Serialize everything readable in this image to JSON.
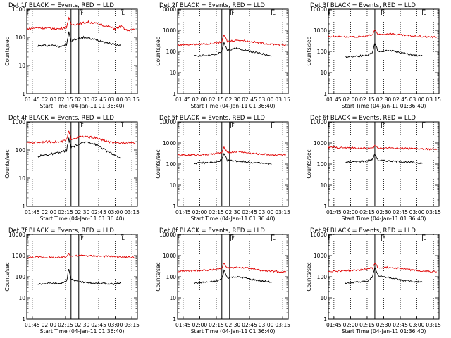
{
  "chart_data": {
    "type": "line",
    "xlabel": "Start Time (04-Jan-11 01:36:40)",
    "ylabel": "Counts/sec",
    "x_tick_labels": [
      "01:45",
      "02:00",
      "02:15",
      "02:30",
      "02:45",
      "03:00",
      "03:15"
    ],
    "xlim": [
      "01:40",
      "03:20"
    ],
    "y_scale": "log",
    "markers": {
      "F_label": "F",
      "L_label": "L",
      "F_time": "02:28",
      "L_time": "03:05"
    },
    "colors": {
      "events": "#000000",
      "lld": "#e00000"
    },
    "panels": [
      {
        "title": "Det 1f BLACK = Events, RED = LLD",
        "ylim": [
          1,
          1000
        ],
        "y_tick_labels": [
          "1",
          "10",
          "100",
          "1000"
        ],
        "solid_lines": [
          "02:20",
          "02:27"
        ],
        "series": [
          {
            "name": "BLACK = Events",
            "x": [
              "01:50",
              "02:00",
              "02:10",
              "02:16",
              "02:18",
              "02:20",
              "02:22",
              "02:26",
              "02:32",
              "02:40",
              "02:50",
              "03:00",
              "03:05"
            ],
            "values": [
              50,
              52,
              48,
              55,
              150,
              70,
              80,
              90,
              100,
              85,
              70,
              55,
              50
            ]
          },
          {
            "name": "RED = LLD",
            "x": [
              "01:40",
              "01:50",
              "02:00",
              "02:10",
              "02:16",
              "02:18",
              "02:20",
              "02:26",
              "02:35",
              "02:45",
              "02:55",
              "03:00",
              "03:05",
              "03:10",
              "03:18"
            ],
            "values": [
              200,
              220,
              210,
              200,
              240,
              500,
              280,
              300,
              350,
              300,
              230,
              200,
              250,
              180,
              190
            ]
          }
        ]
      },
      {
        "title": "Det 2f BLACK = Events, RED = LLD",
        "ylim": [
          1,
          10000
        ],
        "y_tick_labels": [
          "1",
          "10",
          "100",
          "1000",
          "10000"
        ],
        "solid_lines": [
          "02:20",
          "02:27"
        ],
        "series": [
          {
            "name": "BLACK = Events",
            "x": [
              "01:55",
              "02:05",
              "02:15",
              "02:20",
              "02:22",
              "02:25",
              "02:32",
              "02:40",
              "02:50",
              "03:00",
              "03:05"
            ],
            "values": [
              60,
              65,
              70,
              100,
              250,
              110,
              140,
              120,
              90,
              70,
              60
            ]
          },
          {
            "name": "RED = LLD",
            "x": [
              "01:40",
              "01:50",
              "02:00",
              "02:10",
              "02:20",
              "02:22",
              "02:25",
              "02:35",
              "02:45",
              "02:55",
              "03:05",
              "03:18"
            ],
            "values": [
              200,
              210,
              220,
              230,
              280,
              600,
              300,
              350,
              300,
              250,
              220,
              200
            ]
          }
        ]
      },
      {
        "title": "Det 3f BLACK = Events, RED = LLD",
        "ylim": [
          1,
          10000
        ],
        "y_tick_labels": [
          "1",
          "10",
          "100",
          "1000",
          "10000"
        ],
        "solid_lines": [
          "02:22"
        ],
        "series": [
          {
            "name": "BLACK = Events",
            "x": [
              "01:55",
              "02:05",
              "02:15",
              "02:20",
              "02:22",
              "02:25",
              "02:35",
              "02:45",
              "02:55",
              "03:05"
            ],
            "values": [
              55,
              60,
              65,
              90,
              250,
              100,
              110,
              90,
              70,
              60
            ]
          },
          {
            "name": "RED = LLD",
            "x": [
              "01:40",
              "01:50",
              "02:00",
              "02:10",
              "02:20",
              "02:22",
              "02:25",
              "02:35",
              "02:45",
              "02:55",
              "03:05",
              "03:18"
            ],
            "values": [
              500,
              520,
              480,
              500,
              600,
              1100,
              600,
              700,
              600,
              550,
              500,
              480
            ]
          }
        ]
      },
      {
        "title": "Det 4f BLACK = Events, RED = LLD",
        "ylim": [
          1,
          1000
        ],
        "y_tick_labels": [
          "1",
          "10",
          "100",
          "1000"
        ],
        "solid_lines": [
          "02:20",
          "02:27"
        ],
        "series": [
          {
            "name": "BLACK = Events",
            "x": [
              "01:50",
              "02:00",
              "02:10",
              "02:16",
              "02:18",
              "02:20",
              "02:25",
              "02:35",
              "02:45",
              "02:55",
              "03:05"
            ],
            "values": [
              60,
              70,
              80,
              100,
              250,
              120,
              150,
              200,
              140,
              80,
              50
            ]
          },
          {
            "name": "RED = LLD",
            "x": [
              "01:40",
              "01:50",
              "02:00",
              "02:10",
              "02:16",
              "02:18",
              "02:20",
              "02:30",
              "02:40",
              "02:50",
              "03:00",
              "03:10",
              "03:18"
            ],
            "values": [
              180,
              190,
              200,
              190,
              230,
              450,
              250,
              300,
              280,
              220,
              170,
              190,
              180
            ]
          }
        ]
      },
      {
        "title": "Det 5f BLACK = Events, RED = LLD",
        "ylim": [
          1,
          10000
        ],
        "y_tick_labels": [
          "1",
          "10",
          "100",
          "1000",
          "10000"
        ],
        "solid_lines": [
          "02:20",
          "02:27"
        ],
        "series": [
          {
            "name": "BLACK = Events",
            "x": [
              "01:55",
              "02:05",
              "02:15",
              "02:20",
              "02:22",
              "02:25",
              "02:32",
              "02:40",
              "02:50",
              "03:00",
              "03:05"
            ],
            "values": [
              110,
              115,
              120,
              160,
              300,
              150,
              140,
              130,
              115,
              105,
              100
            ]
          },
          {
            "name": "RED = LLD",
            "x": [
              "01:40",
              "01:50",
              "02:00",
              "02:10",
              "02:20",
              "02:22",
              "02:25",
              "02:35",
              "02:45",
              "02:55",
              "03:05",
              "03:18"
            ],
            "values": [
              260,
              270,
              280,
              290,
              350,
              600,
              350,
              400,
              330,
              300,
              280,
              270
            ]
          }
        ]
      },
      {
        "title": "Det 6f BLACK = Events, RED = LLD",
        "ylim": [
          1,
          10000
        ],
        "y_tick_labels": [
          "1",
          "10",
          "100",
          "1000",
          "10000"
        ],
        "solid_lines": [
          "02:22"
        ],
        "series": [
          {
            "name": "BLACK = Events",
            "x": [
              "01:55",
              "02:05",
              "02:15",
              "02:20",
              "02:22",
              "02:25",
              "02:35",
              "02:45",
              "02:55",
              "03:05"
            ],
            "values": [
              120,
              130,
              140,
              170,
              300,
              150,
              140,
              130,
              120,
              110
            ]
          },
          {
            "name": "RED = LLD",
            "x": [
              "01:40",
              "01:50",
              "02:00",
              "02:10",
              "02:20",
              "02:22",
              "02:25",
              "02:35",
              "02:45",
              "02:55",
              "03:05",
              "03:18"
            ],
            "values": [
              620,
              600,
              580,
              560,
              560,
              750,
              580,
              580,
              560,
              540,
              520,
              500
            ]
          }
        ]
      },
      {
        "title": "Det 7f BLACK = Events, RED = LLD",
        "ylim": [
          1,
          10000
        ],
        "y_tick_labels": [
          "1",
          "10",
          "100",
          "1000",
          "10000"
        ],
        "solid_lines": [
          "02:20",
          "02:27"
        ],
        "series": [
          {
            "name": "BLACK = Events",
            "x": [
              "01:50",
              "02:00",
              "02:10",
              "02:16",
              "02:18",
              "02:20",
              "02:25",
              "02:32",
              "02:40",
              "02:50",
              "03:00",
              "03:05"
            ],
            "values": [
              45,
              50,
              48,
              60,
              250,
              80,
              60,
              55,
              50,
              48,
              45,
              50
            ]
          },
          {
            "name": "RED = LLD",
            "x": [
              "01:40",
              "01:50",
              "02:00",
              "02:10",
              "02:16",
              "02:18",
              "02:20",
              "02:30",
              "02:45",
              "03:00",
              "03:10",
              "03:18"
            ],
            "values": [
              800,
              850,
              820,
              800,
              900,
              1300,
              950,
              1000,
              950,
              900,
              850,
              820
            ]
          }
        ]
      },
      {
        "title": "Det 8f BLACK = Events, RED = LLD",
        "ylim": [
          1,
          10000
        ],
        "y_tick_labels": [
          "1",
          "10",
          "100",
          "1000",
          "10000"
        ],
        "solid_lines": [
          "02:20",
          "02:27"
        ],
        "series": [
          {
            "name": "BLACK = Events",
            "x": [
              "01:55",
              "02:05",
              "02:15",
              "02:20",
              "02:22",
              "02:25",
              "02:32",
              "02:40",
              "02:50",
              "03:00",
              "03:05"
            ],
            "values": [
              50,
              55,
              60,
              80,
              200,
              90,
              100,
              90,
              70,
              60,
              55
            ]
          },
          {
            "name": "RED = LLD",
            "x": [
              "01:40",
              "01:50",
              "02:00",
              "02:10",
              "02:20",
              "02:22",
              "02:25",
              "02:35",
              "02:45",
              "02:55",
              "03:05",
              "03:18"
            ],
            "values": [
              180,
              190,
              200,
              210,
              250,
              450,
              250,
              280,
              250,
              200,
              180,
              170
            ]
          }
        ]
      },
      {
        "title": "Det 9f BLACK = Events, RED = LLD",
        "ylim": [
          1,
          10000
        ],
        "y_tick_labels": [
          "1",
          "10",
          "100",
          "1000",
          "10000"
        ],
        "solid_lines": [
          "02:22"
        ],
        "series": [
          {
            "name": "BLACK = Events",
            "x": [
              "01:55",
              "02:05",
              "02:15",
              "02:20",
              "02:22",
              "02:25",
              "02:35",
              "02:45",
              "02:55",
              "03:05"
            ],
            "values": [
              50,
              55,
              60,
              100,
              300,
              110,
              90,
              70,
              60,
              55
            ]
          },
          {
            "name": "RED = LLD",
            "x": [
              "01:40",
              "01:50",
              "02:00",
              "02:10",
              "02:20",
              "02:22",
              "02:25",
              "02:35",
              "02:45",
              "02:55",
              "03:05",
              "03:18"
            ],
            "values": [
              180,
              190,
              200,
              210,
              260,
              450,
              260,
              280,
              250,
              210,
              180,
              170
            ]
          }
        ]
      }
    ]
  }
}
